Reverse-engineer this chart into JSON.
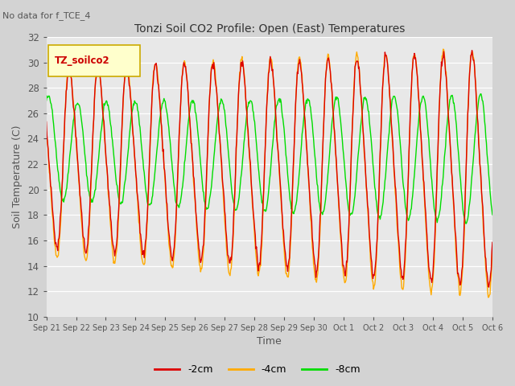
{
  "title": "Tonzi Soil CO2 Profile: Open (East) Temperatures",
  "ylabel": "Soil Temperature (C)",
  "xlabel": "Time",
  "no_data_text": "No data for f_TCE_4",
  "legend_label_text": "TZ_soilco2",
  "ylim": [
    10,
    32
  ],
  "yticks": [
    10,
    12,
    14,
    16,
    18,
    20,
    22,
    24,
    26,
    28,
    30,
    32
  ],
  "bg_color": "#d3d3d3",
  "plot_bg_color": "#e8e8e8",
  "color_2cm": "#dd0000",
  "color_4cm": "#ffaa00",
  "color_8cm": "#00dd00",
  "label_2cm": "-2cm",
  "label_4cm": "-4cm",
  "label_8cm": "-8cm",
  "xtick_labels": [
    "Sep 21",
    "Sep 22",
    "Sep 23",
    "Sep 24",
    "Sep 25",
    "Sep 26",
    "Sep 27",
    "Sep 28",
    "Sep 29",
    "Sep 30",
    "Oct 1",
    "Oct 2",
    "Oct 3",
    "Oct 4",
    "Oct 5",
    "Oct 6"
  ],
  "n_days": 15.5,
  "samples_per_day": 48,
  "legend_box_color": "#ffffcc",
  "legend_box_edge": "#ccaa00",
  "legend_text_color": "#cc0000"
}
